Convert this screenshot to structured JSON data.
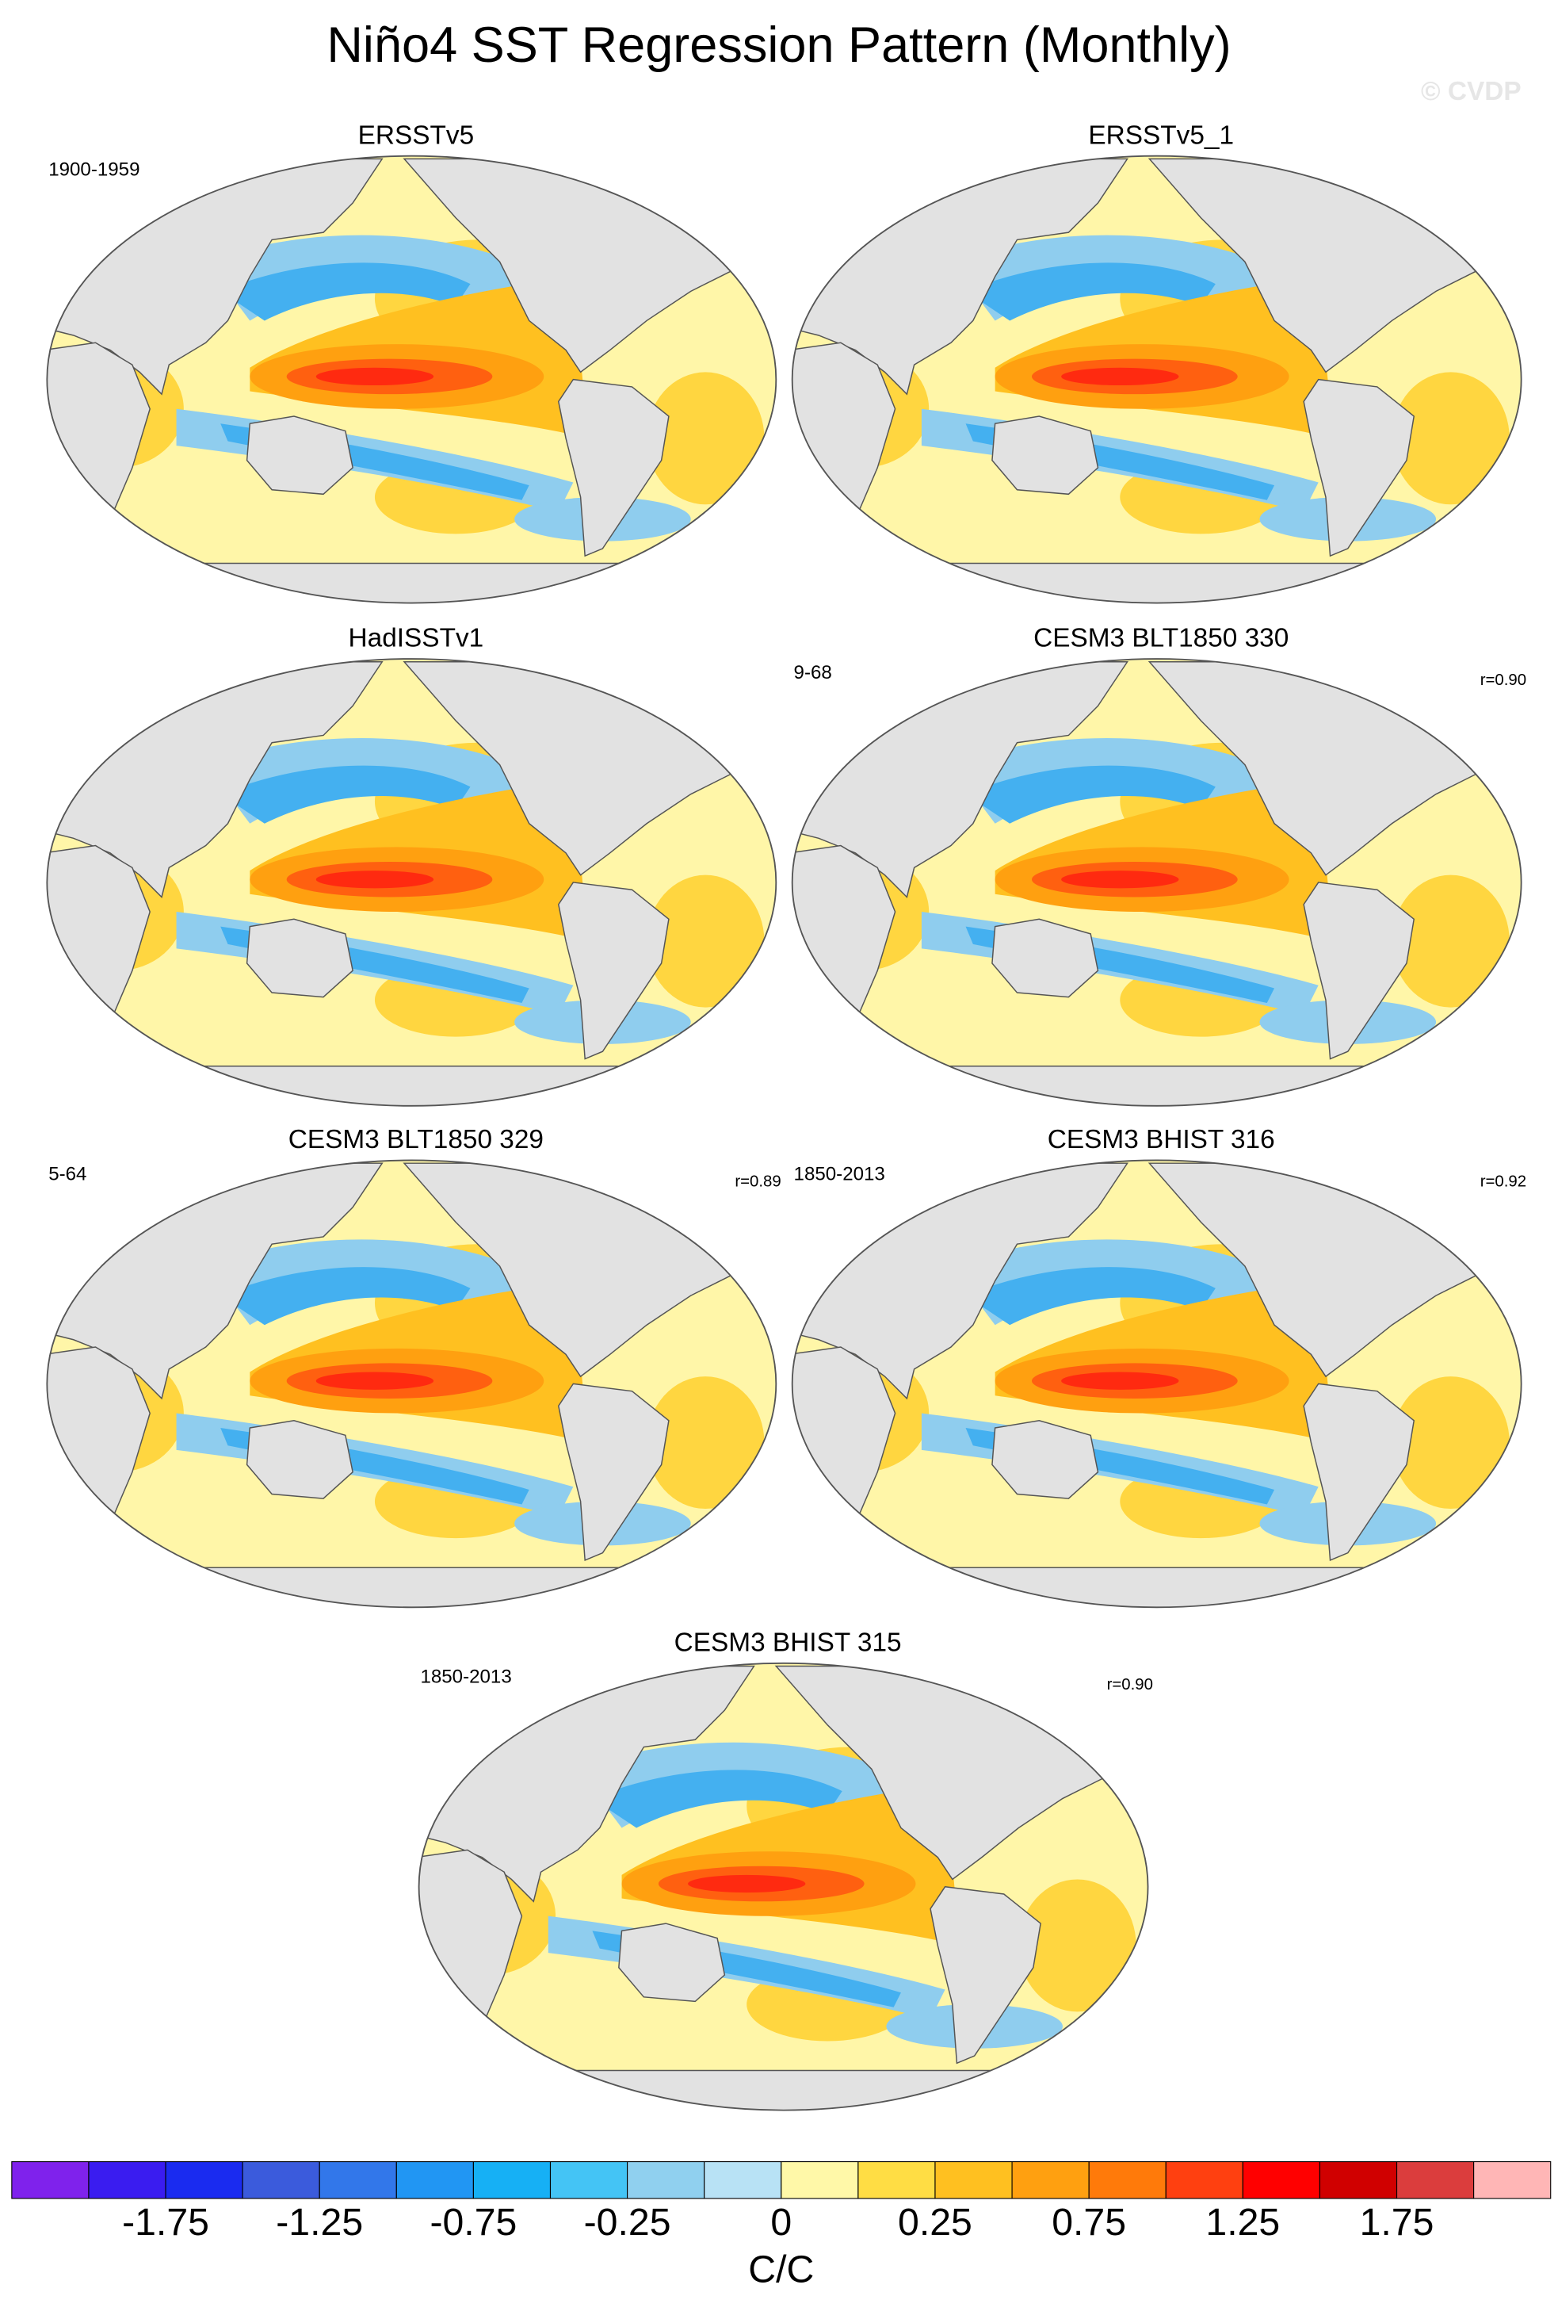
{
  "title": "Niño4 SST Regression Pattern (Monthly)",
  "watermark": "© CVDP",
  "panels": [
    {
      "title": "ERSSTv5",
      "left_label": "1900-1959"
    },
    {
      "title": "ERSSTv5_1"
    },
    {
      "title": "HadISSTv1"
    },
    {
      "title": "CESM3 BLT1850 330",
      "left_label": "9-68",
      "right_label": "r=0.90"
    },
    {
      "title": "CESM3 BLT1850 329",
      "left_label": "5-64",
      "right_label": "r=0.89"
    },
    {
      "title": "CESM3 BHIST 316",
      "left_label": "1850-2013",
      "right_label": "r=0.92"
    },
    {
      "title": "CESM3 BHIST 315",
      "left_label": "1850-2013",
      "right_label": "r=0.90"
    }
  ],
  "colorbar": {
    "colors": [
      "#7f22ec",
      "#3a1cf0",
      "#1a2bf0",
      "#3b5bdc",
      "#3277ea",
      "#2196f3",
      "#16b0f5",
      "#44c4f5",
      "#90d0ef",
      "#b8e2f5",
      "#fff8a8",
      "#ffdd44",
      "#ffc020",
      "#ffa010",
      "#ff7a0a",
      "#ff4010",
      "#ff0000",
      "#d00000",
      "#db3d3d",
      "#ffb6b6"
    ],
    "ticks": [
      -1.75,
      -1.25,
      -0.75,
      -0.25,
      0,
      0.25,
      0.75,
      1.25,
      1.75
    ],
    "label": "C/C"
  }
}
